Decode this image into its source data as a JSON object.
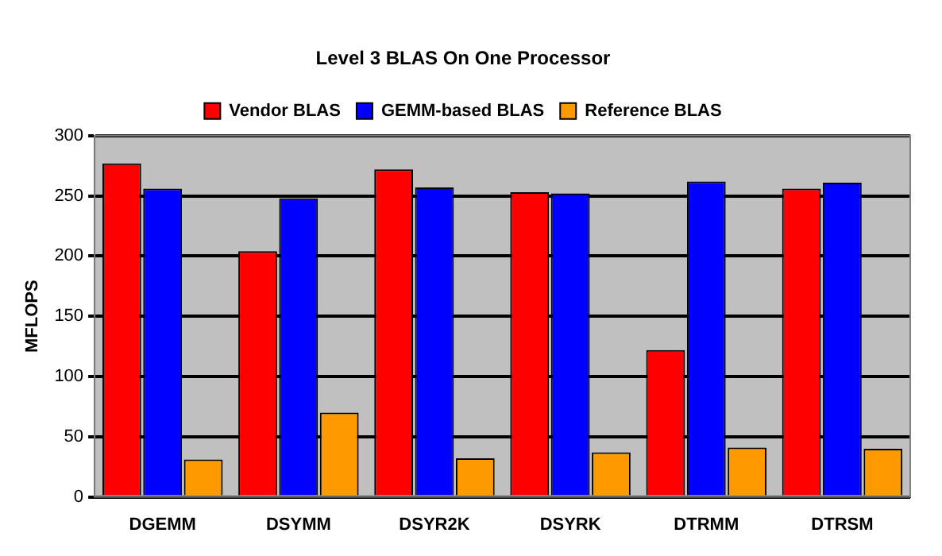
{
  "chart_data": {
    "type": "bar",
    "title": "Level 3 BLAS On One Processor",
    "ylabel": "MFLOPS",
    "categories": [
      "DGEMM",
      "DSYMM",
      "DSYR2K",
      "DSYRK",
      "DTRMM",
      "DTRSM"
    ],
    "series": [
      {
        "name": "Vendor BLAS",
        "color": "#ff0000",
        "values": [
          277,
          204,
          272,
          253,
          122,
          256
        ]
      },
      {
        "name": "GEMM-based BLAS",
        "color": "#0000ff",
        "values": [
          256,
          248,
          257,
          252,
          262,
          261
        ]
      },
      {
        "name": "Reference BLAS",
        "color": "#ff9900",
        "values": [
          31,
          70,
          32,
          37,
          41,
          40
        ]
      }
    ],
    "ylim": [
      0,
      300
    ],
    "yticks": [
      0,
      50,
      100,
      150,
      200,
      250,
      300
    ],
    "grid": "y",
    "legend": "top"
  }
}
